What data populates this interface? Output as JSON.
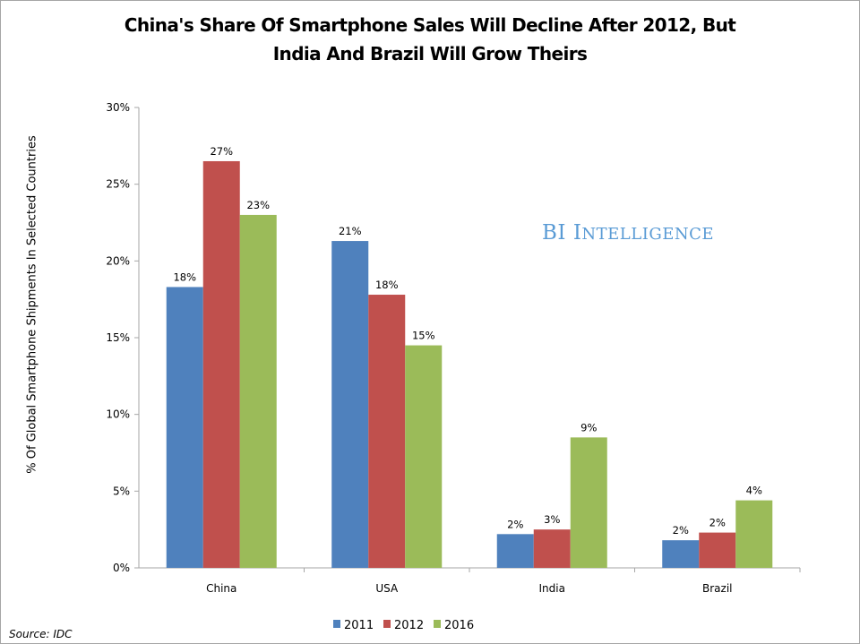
{
  "chart_data": {
    "type": "bar",
    "title": "China's Share Of Smartphone Sales Will Decline After 2012, But India And Brazil Will Grow Theirs",
    "title_lines": [
      "China's Share Of Smartphone Sales Will Decline After 2012, But",
      "India And Brazil Will Grow Theirs"
    ],
    "xlabel": "",
    "ylabel": "% Of Global Smartphone Shipments In Selected Countries",
    "ylim": [
      0,
      30
    ],
    "yticks": [
      0,
      5,
      10,
      15,
      20,
      25,
      30
    ],
    "ytick_labels": [
      "0%",
      "5%",
      "10%",
      "15%",
      "20%",
      "25%",
      "30%"
    ],
    "categories": [
      "China",
      "USA",
      "India",
      "Brazil"
    ],
    "grid": false,
    "legend_position": "bottom",
    "series": [
      {
        "name": "2011",
        "color": "#4f81bd",
        "values": [
          18.3,
          21.3,
          2.2,
          1.8
        ],
        "labels": [
          "18%",
          "21%",
          "2%",
          "2%"
        ]
      },
      {
        "name": "2012",
        "color": "#c0504d",
        "values": [
          26.5,
          17.8,
          2.5,
          2.3
        ],
        "labels": [
          "27%",
          "18%",
          "3%",
          "2%"
        ]
      },
      {
        "name": "2016",
        "color": "#9bbb59",
        "values": [
          23.0,
          14.5,
          8.5,
          4.4
        ],
        "labels": [
          "23%",
          "15%",
          "9%",
          "4%"
        ]
      }
    ]
  },
  "watermark": {
    "prefix": "BI",
    "first_letter": "I",
    "rest": "NTELLIGENCE",
    "text": "BI Intelligence"
  },
  "source": "Source: IDC"
}
